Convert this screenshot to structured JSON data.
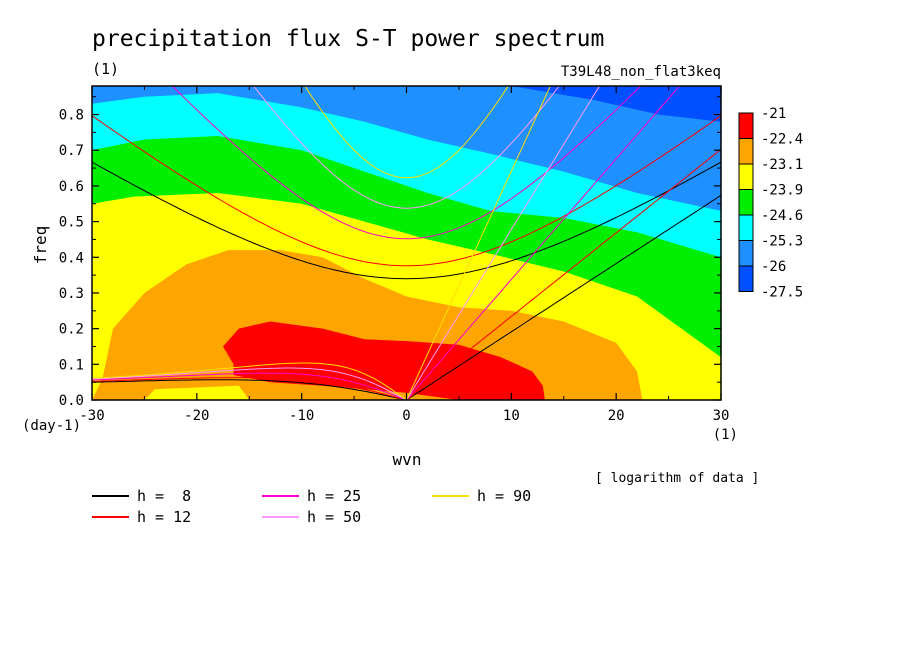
{
  "chart_data": {
    "type": "heatmap",
    "title": "precipitation flux S-T power spectrum",
    "subtitle_left": "(1)",
    "subtitle_right": "T39L48_non_flat3keq",
    "xlabel": "wvn",
    "ylabel": "freq",
    "x_unit": "(1)",
    "y_unit": "(day-1)",
    "xlim": [
      -30,
      30
    ],
    "ylim": [
      0,
      0.88
    ],
    "x_ticks": [
      -30,
      -20,
      -10,
      0,
      10,
      20,
      30
    ],
    "y_ticks": [
      0.0,
      0.1,
      0.2,
      0.3,
      0.4,
      0.5,
      0.6,
      0.7,
      0.8
    ],
    "note": "[ logarithm of data ]",
    "colorbar": {
      "labels": [
        "-21",
        "-22.4",
        "-23.1",
        "-23.9",
        "-24.6",
        "-25.3",
        "-26",
        "-27.5"
      ],
      "colors": [
        "#ff0000",
        "#ffa500",
        "#ffff00",
        "#00ee00",
        "#00ffff",
        "#1e90ff",
        "#0050ff"
      ]
    },
    "contour_fill_colors": {
      "red": "#ff0000",
      "orange": "#ffa500",
      "yellow": "#ffff00",
      "green": "#00ee00",
      "cyan": "#00ffff",
      "lightblue": "#1e90ff",
      "blue": "#0050ff"
    },
    "dispersion_curves": [
      {
        "name": "h =  8",
        "h": 8,
        "color": "#000000"
      },
      {
        "name": "h = 12",
        "h": 12,
        "color": "#ff0000"
      },
      {
        "name": "h = 25",
        "h": 25,
        "color": "#ff00cc"
      },
      {
        "name": "h = 50",
        "h": 50,
        "color": "#ff99ff"
      },
      {
        "name": "h = 90",
        "h": 90,
        "color": "#ffdd00"
      }
    ]
  }
}
